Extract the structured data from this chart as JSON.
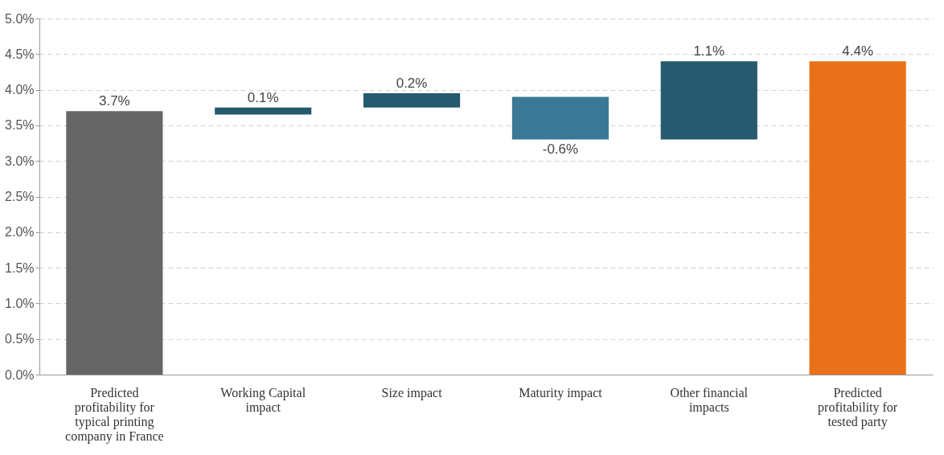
{
  "chart_data": {
    "type": "bar",
    "categories": [
      "Predicted profitability for typical printing company in France",
      "Working Capital impact",
      "Size impact",
      "Maturity impact",
      "Other financial impacts",
      "Predicted profitability for tested party"
    ],
    "values": [
      3.7,
      0.1,
      0.2,
      -0.6,
      1.1,
      4.4
    ],
    "base": [
      0,
      3.65,
      3.75,
      3.9,
      3.3,
      0
    ],
    "colors": [
      "#666666",
      "#265a6e",
      "#265a6e",
      "#3a7896",
      "#265a6e",
      "#e97119"
    ],
    "ylim": [
      0,
      5
    ],
    "yticks": [
      {
        "value": 0,
        "label": "0.0%"
      },
      {
        "value": 0.5,
        "label": "0.5%"
      },
      {
        "value": 1,
        "label": "1.0%"
      },
      {
        "value": 1.5,
        "label": "1.5%"
      },
      {
        "value": 2,
        "label": "2.0%"
      },
      {
        "value": 2.5,
        "label": "2.5%"
      },
      {
        "value": 3,
        "label": "3.0%"
      },
      {
        "value": 3.5,
        "label": "3.5%"
      },
      {
        "value": 4,
        "label": "4.0%"
      },
      {
        "value": 4.5,
        "label": "4.5%"
      },
      {
        "value": 5,
        "label": "5.0%"
      }
    ],
    "value_labels": [
      "3.7%",
      "0.1%",
      "0.2%",
      "-0.6%",
      "1.1%",
      "4.4%"
    ],
    "grid": "y"
  }
}
